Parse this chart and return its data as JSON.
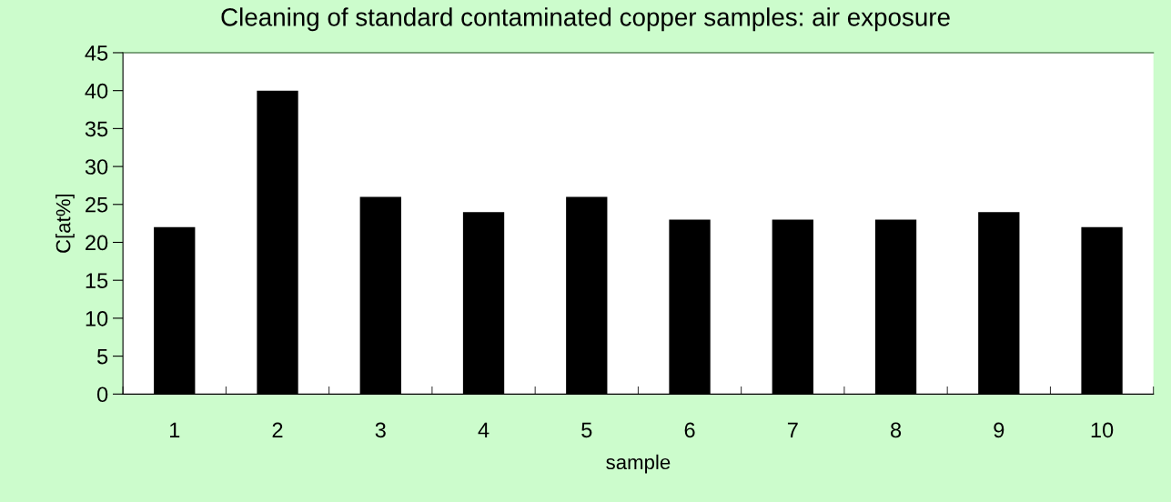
{
  "chart_data": {
    "type": "bar",
    "title": "Cleaning of standard contaminated copper samples: air exposure",
    "xlabel": "sample",
    "ylabel": "C[at%]",
    "categories": [
      "1",
      "2",
      "3",
      "4",
      "5",
      "6",
      "7",
      "8",
      "9",
      "10"
    ],
    "values": [
      22,
      40,
      26,
      24,
      26,
      23,
      23,
      23,
      24,
      22
    ],
    "color": "#000000",
    "ylim": [
      0,
      45
    ],
    "yticks": [
      0,
      5,
      10,
      15,
      20,
      25,
      30,
      35,
      40,
      45
    ],
    "grid": false
  }
}
